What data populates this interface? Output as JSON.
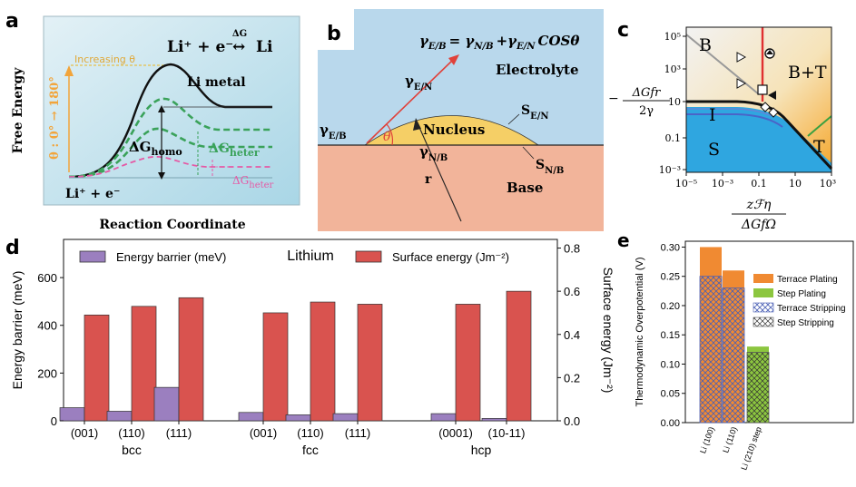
{
  "panel_labels": {
    "a": "a",
    "b": "b",
    "c": "c",
    "d": "d",
    "e": "e"
  },
  "colors": {
    "bar_purple": "#9b7fbf",
    "bar_red": "#d9534f",
    "terrace_orange": "#f08a32",
    "step_green": "#8cc63f",
    "panel_a_bg": "#cfe7ef",
    "electrolyte": "#b9d8ec",
    "base": "#f2b49a",
    "nucleus": "#f5cf66"
  },
  "panel_a": {
    "ylabel": "Free Energy",
    "xlabel": "Reaction Coordinate",
    "reaction_lhs": "Li⁺ + e⁻",
    "reaction_arrow": "↔",
    "reaction_rhs": "Li",
    "reaction_dG": "ΔG",
    "increasing": "Increasing θ",
    "theta_range": "θ : 0° → 180°",
    "li_metal": "Li metal",
    "dG": "ΔG",
    "sub_homo": "homo",
    "sub_heter": "heter",
    "start_label": "Li⁺ + e⁻"
  },
  "panel_b": {
    "equation": "γE/B = γN/B +γE/N COSθ",
    "eq_lhs": "γ",
    "eq_lhs_sub": "E/B",
    "eq_eq": "= γ",
    "eq_r1_sub": "N/B",
    "eq_plus": "+γ",
    "eq_r2_sub": "E/N",
    "eq_cos": "COSθ",
    "gamma": "γ",
    "sub_EN": "E/N",
    "sub_EB": "E/B",
    "sub_NB": "N/B",
    "S": "S",
    "electrolyte": "Electrolyte",
    "nucleus": "Nucleus",
    "base": "Base",
    "theta": "θ",
    "r": "r"
  },
  "panel_c": {
    "regions": {
      "B": "B",
      "BT": "B+T",
      "I": "I",
      "S": "S",
      "T": "T"
    },
    "y_ticks": [
      "10⁵",
      "10³",
      "10",
      "0.1",
      "10⁻³"
    ],
    "x_ticks": [
      "10⁻⁵",
      "10⁻³",
      "0.1",
      "10",
      "10³"
    ],
    "ylabel_num": "ΔGfr",
    "ylabel_den": "2γ",
    "ylabel_sign": "−",
    "xlabel_num": "zℱη",
    "xlabel_den": "ΔGfΩ"
  },
  "chart_data": [
    {
      "type": "bar",
      "panel": "d",
      "title": "Lithium",
      "categories": [
        "(001)",
        "(110)",
        "(111)",
        "(001)",
        "(110)",
        "(111)",
        "(0001)",
        "(10-11)"
      ],
      "groups": [
        {
          "name": "bcc",
          "categories": [
            "(001)",
            "(110)",
            "(111)"
          ]
        },
        {
          "name": "fcc",
          "categories": [
            "(001)",
            "(110)",
            "(111)"
          ]
        },
        {
          "name": "hcp",
          "categories": [
            "(0001)",
            "(10-11)"
          ]
        }
      ],
      "series": [
        {
          "name": "Energy barrier (meV)",
          "axis": "left",
          "values": [
            55,
            40,
            140,
            35,
            25,
            30,
            30,
            10
          ]
        },
        {
          "name": "Surface energy (Jm⁻²)",
          "axis": "right",
          "values": [
            0.49,
            0.53,
            0.57,
            0.5,
            0.55,
            0.54,
            0.54,
            0.6
          ]
        }
      ],
      "ylabel": "Energy barrier (meV)",
      "ylabel_right": "Surface energy (Jm⁻²)",
      "ylim": [
        0,
        760
      ],
      "ylim_right": [
        0,
        0.84
      ],
      "yticks": [
        "0",
        "200",
        "400",
        "600"
      ],
      "yticks_right": [
        "0.0",
        "0.2",
        "0.4",
        "0.6",
        "0.8"
      ]
    },
    {
      "type": "bar",
      "panel": "e",
      "categories": [
        "Li (100)",
        "Li (110)",
        "Li (210) step"
      ],
      "series": [
        {
          "name": "Terrace Plating",
          "values": [
            0.3,
            0.26,
            null
          ]
        },
        {
          "name": "Step Plating",
          "values": [
            null,
            null,
            0.13
          ]
        },
        {
          "name": "Terrace Stripping",
          "values": [
            0.25,
            0.23,
            null
          ]
        },
        {
          "name": "Step Stripping",
          "values": [
            null,
            null,
            0.12
          ]
        }
      ],
      "ylabel": "Thermodynamic Overpotential (V)",
      "ylim": [
        0,
        0.31
      ],
      "yticks": [
        "0.00",
        "0.05",
        "0.10",
        "0.15",
        "0.20",
        "0.25",
        "0.30"
      ]
    }
  ]
}
